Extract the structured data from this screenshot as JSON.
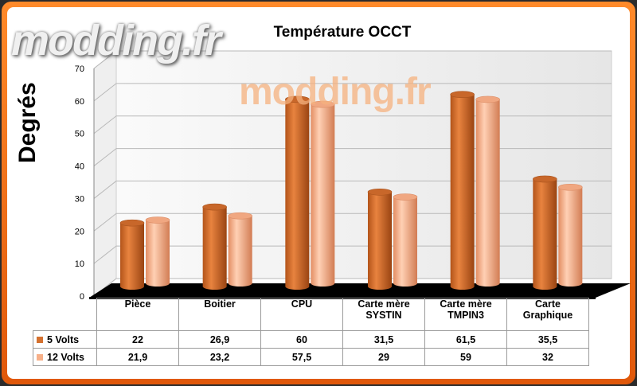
{
  "watermark": "modding.fr",
  "chart_data": {
    "type": "bar",
    "title": "Température OCCT",
    "ylabel": "Degrés",
    "xlabel": "",
    "ylim": [
      0,
      70
    ],
    "yticks": [
      0,
      10,
      20,
      30,
      40,
      50,
      60,
      70
    ],
    "categories": [
      "Pièce",
      "Boitier",
      "CPU",
      "Carte mère SYSTIN",
      "Carte mère TMPIN3",
      "Carte Graphique"
    ],
    "category_lines": [
      [
        "Pièce"
      ],
      [
        "Boitier"
      ],
      [
        "CPU"
      ],
      [
        "Carte mère",
        "SYSTIN"
      ],
      [
        "Carte mère",
        "TMPIN3"
      ],
      [
        "Carte",
        "Graphique"
      ]
    ],
    "series": [
      {
        "name": "5 Volts",
        "values": [
          22,
          26.9,
          60,
          31.5,
          61.5,
          35.5
        ],
        "display": [
          "22",
          "26,9",
          "60",
          "31,5",
          "61,5",
          "35,5"
        ],
        "color": "#d4712f"
      },
      {
        "name": "12 Volts",
        "values": [
          21.9,
          23.2,
          57.5,
          29,
          59,
          32
        ],
        "display": [
          "21,9",
          "23,2",
          "57,5",
          "29",
          "59",
          "32"
        ],
        "color": "#f7b089"
      }
    ],
    "legend": "table",
    "grid": true,
    "style": "3d-cylinder"
  }
}
